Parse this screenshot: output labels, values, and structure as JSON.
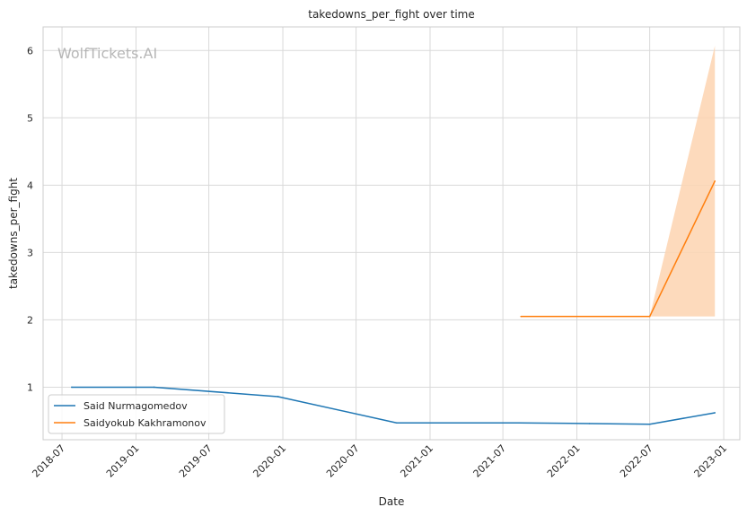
{
  "watermark": "WolfTickets.AI",
  "chart_data": {
    "type": "line",
    "title": "takedowns_per_fight over time",
    "xlabel": "Date",
    "ylabel": "takedowns_per_fight",
    "x_ticks": [
      "2018-07",
      "2019-01",
      "2019-07",
      "2020-01",
      "2020-07",
      "2021-01",
      "2021-07",
      "2022-01",
      "2022-07",
      "2023-01"
    ],
    "y_ticks": [
      1,
      2,
      3,
      4,
      5,
      6
    ],
    "xlim": [
      "2018-05-15",
      "2023-02-10"
    ],
    "ylim": [
      0.22,
      6.35
    ],
    "grid": true,
    "legend_position": "lower-left",
    "series": [
      {
        "name": "Said Nurmagomedov",
        "color": "#1f77b4",
        "points": [
          {
            "x": "2018-07-25",
            "y": 1.0
          },
          {
            "x": "2019-02-15",
            "y": 1.0
          },
          {
            "x": "2019-12-20",
            "y": 0.86
          },
          {
            "x": "2020-10-10",
            "y": 0.47
          },
          {
            "x": "2021-08-10",
            "y": 0.47
          },
          {
            "x": "2022-02-01",
            "y": 0.46
          },
          {
            "x": "2022-07-01",
            "y": 0.45
          },
          {
            "x": "2022-12-10",
            "y": 0.62
          }
        ]
      },
      {
        "name": "Saidyokub Kakhramonov",
        "color": "#ff7f0e",
        "band_color": "#fdd3b0",
        "points": [
          {
            "x": "2021-08-15",
            "y": 2.05
          },
          {
            "x": "2022-07-01",
            "y": 2.05
          },
          {
            "x": "2022-12-10",
            "y": 4.06
          }
        ],
        "band": [
          {
            "x": "2021-08-15",
            "lo": 2.05,
            "hi": 2.05
          },
          {
            "x": "2022-07-01",
            "lo": 2.05,
            "hi": 2.05
          },
          {
            "x": "2022-12-10",
            "lo": 2.05,
            "hi": 6.07
          }
        ]
      }
    ]
  }
}
